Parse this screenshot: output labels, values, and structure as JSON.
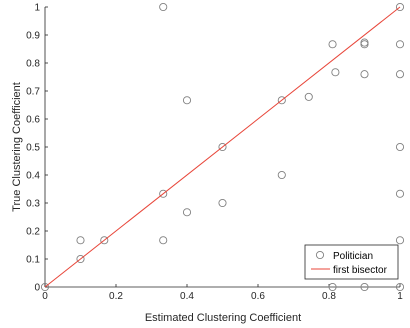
{
  "chart_data": {
    "type": "scatter",
    "xlabel": "Estimated Clustering Coefficient",
    "ylabel": "True Clustering Coefficient",
    "xlim": [
      0,
      1
    ],
    "ylim": [
      0,
      1
    ],
    "xticks": [
      "0",
      "0.2",
      "0.4",
      "0.6",
      "0.8",
      "1"
    ],
    "yticks": [
      "0",
      "0.1",
      "0.2",
      "0.3",
      "0.4",
      "0.5",
      "0.6",
      "0.7",
      "0.8",
      "0.9",
      "1"
    ],
    "grid": false,
    "legend_position": "bottom-right",
    "series": [
      {
        "name": "Politician",
        "kind": "scatter",
        "marker": "open-circle",
        "color": "#808080",
        "points": [
          [
            0,
            0
          ],
          [
            0.1,
            0.1
          ],
          [
            0.1,
            0.167
          ],
          [
            0.167,
            0.167
          ],
          [
            0.333,
            0.167
          ],
          [
            0.333,
            0.333
          ],
          [
            0.333,
            1.0
          ],
          [
            0.4,
            0.267
          ],
          [
            0.4,
            0.667
          ],
          [
            0.5,
            0.3
          ],
          [
            0.5,
            0.5
          ],
          [
            0.667,
            0.4
          ],
          [
            0.667,
            0.667
          ],
          [
            0.743,
            0.679
          ],
          [
            0.81,
            0.0
          ],
          [
            0.81,
            0.867
          ],
          [
            0.818,
            0.767
          ],
          [
            0.9,
            0.0
          ],
          [
            0.9,
            0.76
          ],
          [
            0.9,
            0.867
          ],
          [
            0.9,
            0.873
          ],
          [
            1.0,
            0.0
          ],
          [
            1.0,
            0.167
          ],
          [
            1.0,
            0.333
          ],
          [
            1.0,
            0.5
          ],
          [
            1.0,
            0.76
          ],
          [
            1.0,
            0.867
          ],
          [
            1.0,
            1.0
          ]
        ]
      },
      {
        "name": "first bisector",
        "kind": "line",
        "color": "#e8463a",
        "points": [
          [
            0,
            0
          ],
          [
            1,
            1
          ]
        ]
      }
    ]
  }
}
